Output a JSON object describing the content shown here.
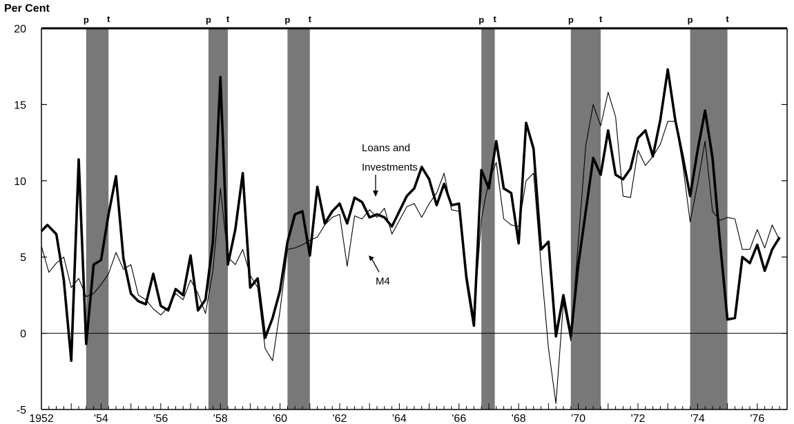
{
  "chart_data": {
    "type": "line",
    "ylabel": "Per Cent",
    "ylim": [
      -5,
      20
    ],
    "ytick_labels": [
      "20",
      "15",
      "10",
      "5",
      "0",
      "-5"
    ],
    "yticks": [
      20,
      15,
      10,
      5,
      0,
      -5
    ],
    "xlim": [
      1952.0,
      1977.0
    ],
    "xtick_labels": [
      {
        "label": "1952",
        "x": 1952
      },
      {
        "label": "'54",
        "x": 1954
      },
      {
        "label": "'56",
        "x": 1956
      },
      {
        "label": "'58",
        "x": 1958
      },
      {
        "label": "'60",
        "x": 1960
      },
      {
        "label": "'62",
        "x": 1962
      },
      {
        "label": "'64",
        "x": 1964
      },
      {
        "label": "'66",
        "x": 1966
      },
      {
        "label": "'68",
        "x": 1968
      },
      {
        "label": "'70",
        "x": 1970
      },
      {
        "label": "'72",
        "x": 1972
      },
      {
        "label": "'74",
        "x": 1974
      },
      {
        "label": "'76",
        "x": 1976
      }
    ],
    "recessions": [
      {
        "peak": 1953.5,
        "trough": 1954.25,
        "peak_label": "p",
        "trough_label": "t"
      },
      {
        "peak": 1957.6,
        "trough": 1958.25,
        "peak_label": "p",
        "trough_label": "t"
      },
      {
        "peak": 1960.25,
        "trough": 1961.0,
        "peak_label": "p",
        "trough_label": "t"
      },
      {
        "peak": 1966.75,
        "trough": 1967.2,
        "peak_label": "p",
        "trough_label": "t"
      },
      {
        "peak": 1969.75,
        "trough": 1970.75,
        "peak_label": "p",
        "trough_label": "t"
      },
      {
        "peak": 1973.75,
        "trough": 1975.0,
        "peak_label": "p",
        "trough_label": "t"
      }
    ],
    "annotations": [
      {
        "text": "Loans and",
        "for": "Loans and Investments"
      },
      {
        "text": "Investments",
        "for": "Loans and Investments"
      },
      {
        "text": "M4",
        "for": "M4"
      }
    ],
    "series": [
      {
        "name": "Loans and Investments",
        "style": "thick",
        "x": [
          1952.0,
          1952.2,
          1952.5,
          1952.75,
          1953.0,
          1953.25,
          1953.5,
          1953.75,
          1954.0,
          1954.25,
          1954.5,
          1954.75,
          1955.0,
          1955.25,
          1955.5,
          1955.75,
          1956.0,
          1956.25,
          1956.5,
          1956.75,
          1957.0,
          1957.25,
          1957.5,
          1957.75,
          1958.0,
          1958.25,
          1958.5,
          1958.75,
          1959.0,
          1959.25,
          1959.5,
          1959.75,
          1960.0,
          1960.25,
          1960.5,
          1960.75,
          1961.0,
          1961.25,
          1961.5,
          1961.75,
          1962.0,
          1962.25,
          1962.5,
          1962.75,
          1963.0,
          1963.25,
          1963.5,
          1963.75,
          1964.0,
          1964.25,
          1964.5,
          1964.75,
          1965.0,
          1965.25,
          1965.5,
          1965.75,
          1966.0,
          1966.25,
          1966.5,
          1966.75,
          1967.0,
          1967.25,
          1967.5,
          1967.75,
          1968.0,
          1968.25,
          1968.5,
          1968.75,
          1969.0,
          1969.25,
          1969.5,
          1969.75,
          1970.0,
          1970.25,
          1970.5,
          1970.75,
          1971.0,
          1971.25,
          1971.5,
          1971.75,
          1972.0,
          1972.25,
          1972.5,
          1972.75,
          1973.0,
          1973.25,
          1973.5,
          1973.75,
          1974.0,
          1974.25,
          1974.5,
          1974.75,
          1975.0,
          1975.25,
          1975.5,
          1975.75,
          1976.0,
          1976.25,
          1976.5,
          1976.75
        ],
        "values": [
          6.7,
          7.1,
          6.5,
          3.5,
          -1.8,
          11.4,
          -0.7,
          4.5,
          4.8,
          7.8,
          10.3,
          4.9,
          2.6,
          2.1,
          1.9,
          3.9,
          1.8,
          1.5,
          2.9,
          2.5,
          5.1,
          1.5,
          2.2,
          6.0,
          16.8,
          4.5,
          6.8,
          10.5,
          3.0,
          3.6,
          -0.3,
          1.0,
          2.8,
          6.0,
          7.8,
          8.0,
          5.1,
          9.6,
          7.2,
          8.0,
          8.5,
          7.2,
          8.9,
          8.6,
          7.6,
          7.8,
          7.6,
          7.0,
          8.0,
          9.0,
          9.5,
          10.9,
          10.1,
          8.4,
          9.8,
          8.4,
          8.5,
          3.6,
          0.5,
          10.7,
          9.5,
          12.6,
          9.5,
          9.2,
          5.9,
          13.8,
          12.1,
          5.5,
          6.0,
          -0.2,
          2.5,
          -0.2,
          4.5,
          8.0,
          11.5,
          10.4,
          13.3,
          10.4,
          10.1,
          10.8,
          12.8,
          13.3,
          11.6,
          14.0,
          17.3,
          14.0,
          11.6,
          9.0,
          12.0,
          14.6,
          11.5,
          6.0,
          0.9,
          1.0,
          5.0,
          4.6,
          5.8,
          4.1,
          5.5,
          6.3
        ]
      },
      {
        "name": "M4",
        "style": "thin",
        "x": [
          1952.0,
          1952.25,
          1952.5,
          1952.75,
          1953.0,
          1953.25,
          1953.5,
          1953.75,
          1954.0,
          1954.25,
          1954.5,
          1954.75,
          1955.0,
          1955.25,
          1955.5,
          1955.75,
          1956.0,
          1956.25,
          1956.5,
          1956.75,
          1957.0,
          1957.25,
          1957.5,
          1957.75,
          1958.0,
          1958.25,
          1958.5,
          1958.75,
          1959.0,
          1959.25,
          1959.5,
          1959.75,
          1960.0,
          1960.25,
          1960.5,
          1960.75,
          1961.0,
          1961.25,
          1961.5,
          1961.75,
          1962.0,
          1962.25,
          1962.5,
          1962.75,
          1963.0,
          1963.25,
          1963.5,
          1963.75,
          1964.0,
          1964.25,
          1964.5,
          1964.75,
          1965.0,
          1965.25,
          1965.5,
          1965.75,
          1966.0,
          1966.25,
          1966.5,
          1966.75,
          1967.0,
          1967.25,
          1967.5,
          1967.75,
          1968.0,
          1968.25,
          1968.5,
          1968.75,
          1969.0,
          1969.25,
          1969.5,
          1969.75,
          1970.0,
          1970.25,
          1970.5,
          1970.75,
          1971.0,
          1971.25,
          1971.5,
          1971.75,
          1972.0,
          1972.25,
          1972.5,
          1972.75,
          1973.0,
          1973.25,
          1973.5,
          1973.75,
          1974.0,
          1974.25,
          1974.5,
          1974.75,
          1975.0,
          1975.25,
          1975.5,
          1975.75,
          1976.0,
          1976.25,
          1976.5,
          1976.75
        ],
        "values": [
          5.7,
          4.0,
          4.6,
          5.0,
          3.0,
          3.6,
          2.4,
          2.6,
          3.2,
          3.9,
          5.3,
          4.2,
          4.5,
          2.5,
          2.2,
          1.6,
          1.2,
          1.7,
          2.6,
          2.2,
          3.5,
          2.6,
          1.3,
          4.1,
          9.5,
          5.0,
          4.5,
          5.5,
          3.8,
          3.0,
          -1.0,
          -1.8,
          1.5,
          5.5,
          5.6,
          5.8,
          6.1,
          6.3,
          7.1,
          7.6,
          7.8,
          4.4,
          7.7,
          7.5,
          8.1,
          7.6,
          8.2,
          6.5,
          7.4,
          8.3,
          8.5,
          7.6,
          8.5,
          9.2,
          10.5,
          8.1,
          8.0,
          4.0,
          1.0,
          7.5,
          10.0,
          11.2,
          7.5,
          7.1,
          7.0,
          10.0,
          10.5,
          4.5,
          -1.0,
          -4.6,
          2.0,
          -0.5,
          6.0,
          12.3,
          15.0,
          13.6,
          15.8,
          14.2,
          9.0,
          8.9,
          12.0,
          11.0,
          11.6,
          12.4,
          13.9,
          13.9,
          11.1,
          7.3,
          9.8,
          12.6,
          8.0,
          7.4,
          7.6,
          7.5,
          5.5,
          5.5,
          6.8,
          5.6,
          7.1,
          6.1
        ]
      }
    ]
  }
}
